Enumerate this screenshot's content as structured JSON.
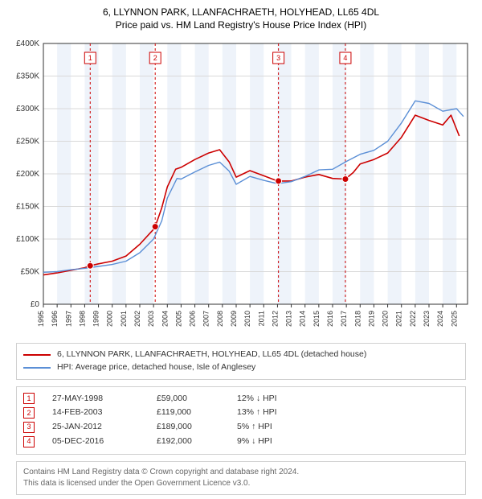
{
  "title_main": "6, LLYNNON PARK, LLANFACHRAETH, HOLYHEAD, LL65 4DL",
  "title_sub": "Price paid vs. HM Land Registry's House Price Index (HPI)",
  "chart": {
    "type": "line",
    "background_color": "#ffffff",
    "grid_color": "#d9d9d9",
    "axis_color": "#333333",
    "band_color": "#eef3fa",
    "xlim": [
      1995,
      2025.8
    ],
    "ylim": [
      0,
      400000
    ],
    "ytick_step": 50000,
    "ytick_labels": [
      "£0",
      "£50K",
      "£100K",
      "£150K",
      "£200K",
      "£250K",
      "£300K",
      "£350K",
      "£400K"
    ],
    "x_ticks": [
      1995,
      1996,
      1997,
      1998,
      1999,
      2000,
      2001,
      2002,
      2003,
      2004,
      2005,
      2006,
      2007,
      2008,
      2009,
      2010,
      2011,
      2012,
      2013,
      2014,
      2015,
      2016,
      2017,
      2018,
      2019,
      2020,
      2021,
      2022,
      2023,
      2024,
      2025
    ],
    "x_tick_fontsize": 9,
    "y_tick_fontsize": 10,
    "series": [
      {
        "name": "property",
        "label": "6, LLYNNON PARK, LLANFACHRAETH, HOLYHEAD, LL65 4DL (detached house)",
        "color": "#cc0000",
        "line_width": 1.6,
        "data": [
          [
            1995,
            45000
          ],
          [
            1996,
            48000
          ],
          [
            1997,
            52000
          ],
          [
            1998,
            56000
          ],
          [
            1998.4,
            59000
          ],
          [
            1999,
            62000
          ],
          [
            2000,
            66000
          ],
          [
            2001,
            74000
          ],
          [
            2002,
            92000
          ],
          [
            2003,
            115000
          ],
          [
            2003.12,
            119000
          ],
          [
            2003.6,
            148000
          ],
          [
            2004,
            180000
          ],
          [
            2004.6,
            207000
          ],
          [
            2005,
            210000
          ],
          [
            2006,
            222000
          ],
          [
            2007,
            232000
          ],
          [
            2007.8,
            237000
          ],
          [
            2008.5,
            218000
          ],
          [
            2009,
            195000
          ],
          [
            2010,
            205000
          ],
          [
            2011,
            197000
          ],
          [
            2012,
            189000
          ],
          [
            2012.07,
            189000
          ],
          [
            2013,
            189000
          ],
          [
            2014,
            195000
          ],
          [
            2015,
            199000
          ],
          [
            2016,
            193000
          ],
          [
            2016.93,
            192000
          ],
          [
            2017.5,
            202000
          ],
          [
            2018,
            215000
          ],
          [
            2019,
            222000
          ],
          [
            2020,
            232000
          ],
          [
            2021,
            256000
          ],
          [
            2022,
            290000
          ],
          [
            2023,
            282000
          ],
          [
            2024,
            275000
          ],
          [
            2024.6,
            290000
          ],
          [
            2025.2,
            258000
          ]
        ]
      },
      {
        "name": "hpi",
        "label": "HPI: Average price, detached house, Isle of Anglesey",
        "color": "#5b8fd6",
        "line_width": 1.4,
        "data": [
          [
            1995,
            49000
          ],
          [
            1996,
            50000
          ],
          [
            1997,
            53000
          ],
          [
            1998,
            55000
          ],
          [
            1999,
            58000
          ],
          [
            2000,
            61000
          ],
          [
            2001,
            66000
          ],
          [
            2002,
            79000
          ],
          [
            2003,
            100000
          ],
          [
            2003.6,
            128000
          ],
          [
            2004,
            163000
          ],
          [
            2004.7,
            193000
          ],
          [
            2005,
            192000
          ],
          [
            2006,
            203000
          ],
          [
            2007,
            213000
          ],
          [
            2007.8,
            218000
          ],
          [
            2008.5,
            204000
          ],
          [
            2009,
            184000
          ],
          [
            2010,
            196000
          ],
          [
            2011,
            190000
          ],
          [
            2012,
            185000
          ],
          [
            2013,
            188000
          ],
          [
            2014,
            196000
          ],
          [
            2015,
            206000
          ],
          [
            2016,
            207000
          ],
          [
            2017,
            219000
          ],
          [
            2018,
            230000
          ],
          [
            2019,
            236000
          ],
          [
            2020,
            250000
          ],
          [
            2021,
            278000
          ],
          [
            2022,
            312000
          ],
          [
            2023,
            308000
          ],
          [
            2024,
            296000
          ],
          [
            2025,
            300000
          ],
          [
            2025.5,
            288000
          ]
        ]
      }
    ],
    "event_lines": [
      {
        "x": 1998.4,
        "label": "1"
      },
      {
        "x": 2003.12,
        "label": "2"
      },
      {
        "x": 2012.07,
        "label": "3"
      },
      {
        "x": 2016.93,
        "label": "4"
      }
    ],
    "event_line_color": "#cc0000",
    "event_points": [
      {
        "x": 1998.4,
        "y": 59000
      },
      {
        "x": 2003.12,
        "y": 119000
      },
      {
        "x": 2012.07,
        "y": 189000
      },
      {
        "x": 2016.93,
        "y": 192000
      }
    ],
    "event_point_color": "#cc0000",
    "event_point_radius": 4
  },
  "legend": [
    {
      "color": "#cc0000",
      "text": "6, LLYNNON PARK, LLANFACHRAETH, HOLYHEAD, LL65 4DL (detached house)"
    },
    {
      "color": "#5b8fd6",
      "text": "HPI: Average price, detached house, Isle of Anglesey"
    }
  ],
  "events": [
    {
      "num": "1",
      "date": "27-MAY-1998",
      "price": "£59,000",
      "diff": "12% ↓ HPI"
    },
    {
      "num": "2",
      "date": "14-FEB-2003",
      "price": "£119,000",
      "diff": "13% ↑ HPI"
    },
    {
      "num": "3",
      "date": "25-JAN-2012",
      "price": "£189,000",
      "diff": "5% ↑ HPI"
    },
    {
      "num": "4",
      "date": "05-DEC-2016",
      "price": "£192,000",
      "diff": "9% ↓ HPI"
    }
  ],
  "footer_line1": "Contains HM Land Registry data © Crown copyright and database right 2024.",
  "footer_line2": "This data is licensed under the Open Government Licence v3.0."
}
